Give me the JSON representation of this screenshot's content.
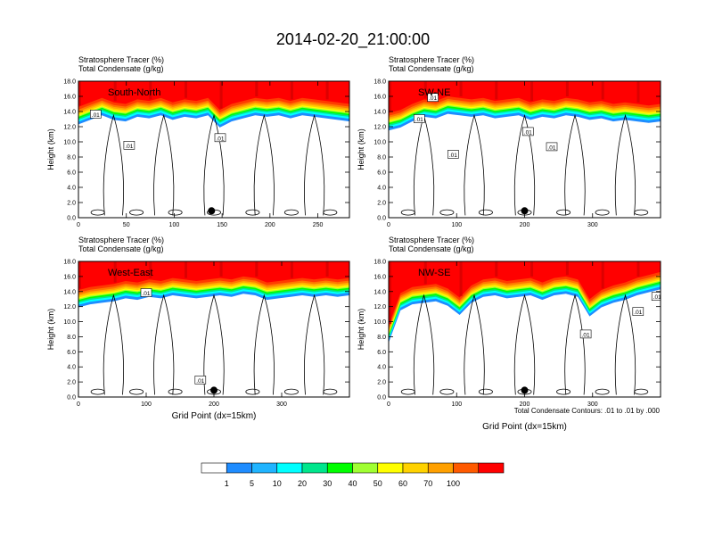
{
  "figure": {
    "title": "2014-02-20_21:00:00",
    "contour_note": "Total Condensate Contours: .01 to .01 by .000"
  },
  "colorbar": {
    "colors": [
      "#ffffff",
      "#1e8cff",
      "#20b4ff",
      "#00ffff",
      "#00e68c",
      "#00ff00",
      "#a0ff32",
      "#ffff00",
      "#ffd200",
      "#ffa000",
      "#ff5a00",
      "#ff0000"
    ],
    "labels": [
      "1",
      "5",
      "10",
      "20",
      "30",
      "40",
      "50",
      "60",
      "70",
      "100"
    ]
  },
  "chart_data": [
    {
      "type": "heatmap",
      "variable_line1": "Stratosphere Tracer   (%)",
      "variable_line2": "Total Condensate   (g/kg)",
      "section_label": "South-North",
      "ylabel": "Height (km)",
      "xlabel": "",
      "xlim": [
        0,
        283
      ],
      "ylim": [
        0,
        18
      ],
      "xticks": [
        0,
        50,
        100,
        150,
        200,
        250
      ],
      "yticks": [
        "0.0",
        "2.0",
        "4.0",
        "6.0",
        "8.0",
        "10.0",
        "12.0",
        "14.0",
        "16.0",
        "18.0"
      ],
      "tracer_top_km": [
        14.6,
        15.2,
        15.8,
        15.2,
        15.0,
        15.6,
        15.4,
        15.8,
        15.2,
        15.6,
        15.4,
        15.8,
        14.2,
        15.0,
        15.4,
        15.8,
        15.6,
        15.8,
        15.4,
        15.8,
        15.6,
        15.4,
        15.2,
        15.0
      ],
      "contour_labels": [
        {
          "text": ".01",
          "x": 18,
          "y": 13.6
        },
        {
          "text": ".01",
          "x": 53,
          "y": 9.5
        },
        {
          "text": ".01",
          "x": 148,
          "y": 10.5
        }
      ],
      "marker": {
        "x": 139,
        "y": 0.9
      }
    },
    {
      "type": "heatmap",
      "variable_line1": "Stratosphere Tracer   (%)",
      "variable_line2": "Total Condensate   (g/kg)",
      "section_label": "SW-NE",
      "ylabel": "Height (km)",
      "xlabel": "",
      "xlim": [
        0,
        400
      ],
      "ylim": [
        0,
        18
      ],
      "xticks": [
        0,
        100,
        200,
        300
      ],
      "yticks": [
        "0.0",
        "2.0",
        "4.0",
        "6.0",
        "8.0",
        "10.0",
        "12.0",
        "14.0",
        "16.0",
        "18.0"
      ],
      "tracer_top_km": [
        13.8,
        14.2,
        15.0,
        15.6,
        15.4,
        16.0,
        15.8,
        15.6,
        15.8,
        15.4,
        15.6,
        15.8,
        15.2,
        15.6,
        15.4,
        15.8,
        15.6,
        15.2,
        15.4,
        15.0,
        15.2,
        15.0,
        14.8,
        15.0
      ],
      "contour_labels": [
        {
          "text": ".01",
          "x": 45,
          "y": 13.0
        },
        {
          "text": ".01",
          "x": 65,
          "y": 15.8
        },
        {
          "text": ".01",
          "x": 95,
          "y": 8.3
        },
        {
          "text": ".01",
          "x": 205,
          "y": 11.3
        },
        {
          "text": ".01",
          "x": 240,
          "y": 9.3
        }
      ],
      "marker": {
        "x": 200,
        "y": 0.9
      }
    },
    {
      "type": "heatmap",
      "variable_line1": "Stratosphere Tracer   (%)",
      "variable_line2": "Total Condensate   (g/kg)",
      "section_label": "West-East",
      "ylabel": "Height (km)",
      "xlabel": "Grid Point (dx=15km)",
      "xlim": [
        0,
        400
      ],
      "ylim": [
        0,
        18
      ],
      "xticks": [
        0,
        100,
        200,
        300
      ],
      "yticks": [
        "0.0",
        "2.0",
        "4.0",
        "6.0",
        "8.0",
        "10.0",
        "12.0",
        "14.0",
        "16.0",
        "18.0"
      ],
      "tracer_top_km": [
        14.2,
        14.6,
        14.8,
        15.0,
        15.4,
        15.2,
        15.6,
        15.4,
        15.8,
        15.6,
        15.4,
        15.6,
        15.8,
        15.6,
        16.0,
        15.8,
        15.2,
        15.4,
        15.6,
        15.8,
        15.6,
        15.8,
        15.6,
        15.8
      ],
      "contour_labels": [
        {
          "text": ".01",
          "x": 100,
          "y": 13.8
        },
        {
          "text": ".01",
          "x": 180,
          "y": 2.2
        }
      ],
      "marker": {
        "x": 200,
        "y": 0.9
      }
    },
    {
      "type": "heatmap",
      "variable_line1": "Stratosphere Tracer   (%)",
      "variable_line2": "Total Condensate   (g/kg)",
      "section_label": "NW-SE",
      "ylabel": "Height (km)",
      "xlabel": "Grid Point (dx=15km)",
      "xlim": [
        0,
        400
      ],
      "ylim": [
        0,
        18
      ],
      "xticks": [
        0,
        100,
        200,
        300
      ],
      "yticks": [
        "0.0",
        "2.0",
        "4.0",
        "6.0",
        "8.0",
        "10.0",
        "12.0",
        "14.0",
        "16.0",
        "18.0"
      ],
      "tracer_top_km": [
        9.5,
        13.8,
        14.6,
        14.8,
        15.0,
        14.4,
        13.2,
        14.8,
        15.6,
        15.8,
        15.4,
        15.6,
        15.8,
        15.2,
        15.8,
        16.0,
        15.6,
        13.0,
        14.2,
        14.8,
        15.2,
        15.8,
        16.2,
        16.6
      ],
      "contour_labels": [
        {
          "text": ".01",
          "x": 290,
          "y": 8.3
        },
        {
          "text": ".01",
          "x": 367,
          "y": 11.3
        },
        {
          "text": ".01",
          "x": 395,
          "y": 13.3
        }
      ],
      "marker": {
        "x": 200,
        "y": 0.9
      }
    }
  ]
}
